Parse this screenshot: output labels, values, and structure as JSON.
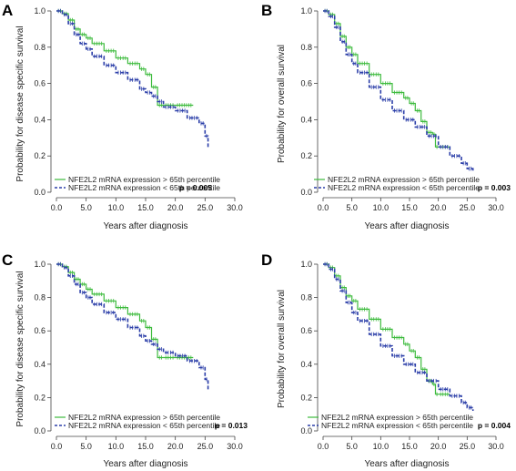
{
  "colors": {
    "high": "#3dbb3d",
    "low": "#2b3ea8"
  },
  "chart_data": [
    {
      "type": "line",
      "panel_letter": "A",
      "xlabel": "Years after diagnosis",
      "ylabel": "Probability for disease specific survival",
      "xlim": [
        0,
        30
      ],
      "ylim": [
        0,
        1
      ],
      "xticks": [
        "0.0",
        "5.0",
        "10.0",
        "15.0",
        "20.0",
        "25.0",
        "30.0"
      ],
      "yticks": [
        "0.0",
        "0.2",
        "0.4",
        "0.6",
        "0.8",
        "1.0"
      ],
      "legend_placement": "bottom-left",
      "p_value": "p = 0.005",
      "series": [
        {
          "name": "NFE2L2 mRNA expression > 65th percentile",
          "color_key": "high",
          "style": "solid",
          "x": [
            0,
            1,
            2,
            3,
            4,
            5,
            6,
            8,
            10,
            12,
            14,
            15,
            16,
            17,
            18,
            20,
            23
          ],
          "y": [
            1.0,
            0.985,
            0.95,
            0.9,
            0.87,
            0.85,
            0.82,
            0.78,
            0.74,
            0.71,
            0.68,
            0.65,
            0.58,
            0.48,
            0.48,
            0.48,
            0.48
          ]
        },
        {
          "name": "NFE2L2 mRNA expression < 65th percentile",
          "color_key": "low",
          "style": "dashed",
          "x": [
            0,
            1,
            2,
            3,
            4,
            5,
            6,
            8,
            10,
            12,
            14,
            15,
            16,
            17,
            18,
            20,
            22,
            24,
            25,
            25.5
          ],
          "y": [
            1.0,
            0.98,
            0.93,
            0.87,
            0.82,
            0.79,
            0.75,
            0.7,
            0.66,
            0.62,
            0.57,
            0.55,
            0.53,
            0.5,
            0.47,
            0.45,
            0.41,
            0.38,
            0.31,
            0.24
          ]
        }
      ]
    },
    {
      "type": "line",
      "panel_letter": "B",
      "xlabel": "Years after diagnosis",
      "ylabel": "Probability for overall survival",
      "xlim": [
        0,
        30
      ],
      "ylim": [
        0,
        1
      ],
      "xticks": [
        "0.0",
        "5.0",
        "10.0",
        "15.0",
        "20.0",
        "25.0",
        "30.0"
      ],
      "yticks": [
        "0.0",
        "0.2",
        "0.4",
        "0.6",
        "0.8",
        "1.0"
      ],
      "legend_placement": "bottom-left",
      "p_value": "p = 0.003",
      "series": [
        {
          "name": "NFE2L2 mRNA expression > 65th percentile",
          "color_key": "high",
          "style": "solid",
          "x": [
            0,
            1,
            2,
            3,
            4,
            5,
            6,
            8,
            10,
            12,
            14,
            15,
            16,
            17,
            18,
            19,
            19.5,
            20,
            22
          ],
          "y": [
            1.0,
            0.98,
            0.93,
            0.86,
            0.8,
            0.76,
            0.71,
            0.65,
            0.6,
            0.55,
            0.52,
            0.49,
            0.45,
            0.39,
            0.33,
            0.32,
            0.25,
            0.25,
            0.25
          ]
        },
        {
          "name": "NFE2L2 mRNA expression < 65th percentile",
          "color_key": "low",
          "style": "dashed",
          "x": [
            0,
            1,
            2,
            3,
            4,
            5,
            6,
            8,
            10,
            12,
            14,
            16,
            18,
            20,
            22,
            24,
            25,
            26
          ],
          "y": [
            1.0,
            0.97,
            0.91,
            0.83,
            0.76,
            0.71,
            0.66,
            0.58,
            0.51,
            0.45,
            0.4,
            0.36,
            0.31,
            0.25,
            0.2,
            0.16,
            0.13,
            0.11
          ]
        }
      ]
    },
    {
      "type": "line",
      "panel_letter": "C",
      "xlabel": "Years after diagnosis",
      "ylabel": "Probability for disease specific survival",
      "xlim": [
        0,
        30
      ],
      "ylim": [
        0,
        1
      ],
      "xticks": [
        "0.0",
        "5.0",
        "10.0",
        "15.0",
        "20.0",
        "25.0",
        "30.0"
      ],
      "yticks": [
        "0.0",
        "0.2",
        "0.4",
        "0.6",
        "0.8",
        "1.0"
      ],
      "legend_placement": "bottom-left",
      "p_value": "p = 0.013",
      "series": [
        {
          "name": "NFE2L2 mRNA expression > 65th percentile",
          "color_key": "high",
          "style": "solid",
          "x": [
            0,
            1,
            2,
            3,
            4,
            5,
            6,
            8,
            10,
            12,
            14,
            15,
            16,
            17,
            18,
            20,
            23
          ],
          "y": [
            1.0,
            0.985,
            0.95,
            0.91,
            0.88,
            0.85,
            0.82,
            0.78,
            0.74,
            0.7,
            0.66,
            0.62,
            0.55,
            0.44,
            0.44,
            0.44,
            0.44
          ]
        },
        {
          "name": "NFE2L2 mRNA expression < 65th percentile",
          "color_key": "low",
          "style": "dashed",
          "x": [
            0,
            1,
            2,
            3,
            4,
            5,
            6,
            8,
            10,
            12,
            14,
            15,
            16,
            17,
            18,
            20,
            22,
            24,
            25,
            25.5
          ],
          "y": [
            1.0,
            0.98,
            0.93,
            0.88,
            0.83,
            0.8,
            0.76,
            0.71,
            0.67,
            0.62,
            0.57,
            0.54,
            0.52,
            0.49,
            0.47,
            0.45,
            0.42,
            0.38,
            0.31,
            0.24
          ]
        }
      ]
    },
    {
      "type": "line",
      "panel_letter": "D",
      "xlabel": "Years after diagnosis",
      "ylabel": "Probability for overall survival",
      "xlim": [
        0,
        30
      ],
      "ylim": [
        0,
        1
      ],
      "xticks": [
        "0.0",
        "5.0",
        "10.0",
        "15.0",
        "20.0",
        "25.0",
        "30.0"
      ],
      "yticks": [
        "0.0",
        "0.2",
        "0.4",
        "0.6",
        "0.8",
        "1.0"
      ],
      "legend_placement": "bottom-left",
      "p_value": "p = 0.004",
      "series": [
        {
          "name": "NFE2L2 mRNA expression > 65th percentile",
          "color_key": "high",
          "style": "solid",
          "x": [
            0,
            1,
            2,
            3,
            4,
            5,
            6,
            8,
            10,
            12,
            14,
            15,
            16,
            17,
            18,
            19,
            19.5,
            20,
            22
          ],
          "y": [
            1.0,
            0.98,
            0.93,
            0.86,
            0.81,
            0.78,
            0.73,
            0.67,
            0.61,
            0.56,
            0.52,
            0.48,
            0.44,
            0.37,
            0.3,
            0.28,
            0.22,
            0.22,
            0.22
          ]
        },
        {
          "name": "NFE2L2 mRNA expression < 65th percentile",
          "color_key": "low",
          "style": "dashed",
          "x": [
            0,
            1,
            2,
            3,
            4,
            5,
            6,
            8,
            10,
            12,
            14,
            16,
            18,
            20,
            22,
            24,
            25,
            26
          ],
          "y": [
            1.0,
            0.97,
            0.91,
            0.84,
            0.77,
            0.71,
            0.66,
            0.58,
            0.51,
            0.45,
            0.4,
            0.35,
            0.3,
            0.25,
            0.21,
            0.17,
            0.14,
            0.12
          ]
        }
      ]
    }
  ]
}
